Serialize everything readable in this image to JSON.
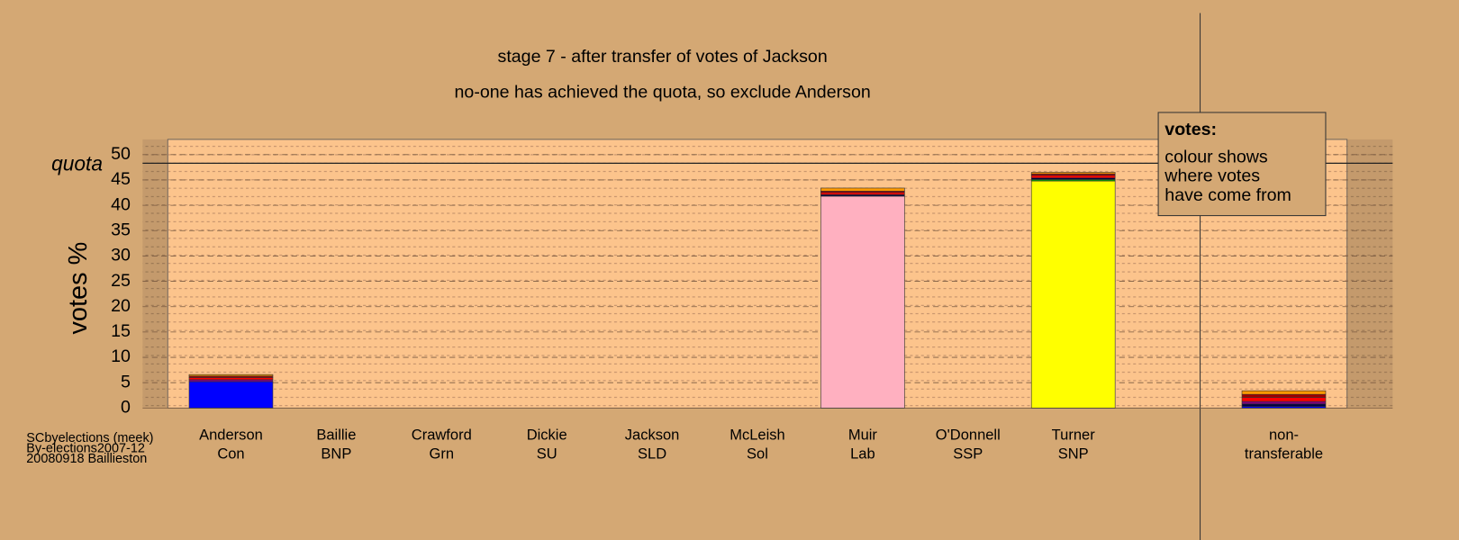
{
  "chart_data": {
    "type": "stacked-bar",
    "title": "stage 7 - after transfer of votes of Jackson",
    "subtitle": "no-one has achieved the quota, so exclude Anderson",
    "y_label": "votes %",
    "categories": [
      "Anderson",
      "Baillie",
      "Crawford",
      "Dickie",
      "Jackson",
      "McLeish",
      "Muir",
      "O'Donnell",
      "Turner",
      null,
      "non-"
    ],
    "category_sublabels": [
      "Con",
      "BNP",
      "Grn",
      "SU",
      "SLD",
      "Sol",
      "Lab",
      "SSP",
      "SNP",
      null,
      "transferable"
    ],
    "series": [
      {
        "color": "#0000ff",
        "values": [
          5.2,
          0,
          0,
          0,
          0,
          0,
          0,
          0,
          0,
          null,
          0.3
        ]
      },
      {
        "color": "#ffb0c0",
        "values": [
          0,
          0,
          0,
          0,
          0,
          0,
          41.8,
          0,
          0,
          null,
          0
        ]
      },
      {
        "color": "#ffff00",
        "values": [
          0,
          0,
          0,
          0,
          0,
          0,
          0,
          0,
          44.8,
          null,
          0
        ]
      },
      {
        "color": "#00a000",
        "values": [
          0,
          0,
          0,
          0,
          0,
          0,
          0,
          0,
          0.3,
          null,
          0
        ]
      },
      {
        "color": "#000040",
        "values": [
          0,
          0,
          0,
          0,
          0,
          0,
          0.3,
          0,
          0.3,
          null,
          0.5
        ]
      },
      {
        "color": "#800080",
        "values": [
          0.4,
          0,
          0,
          0,
          0,
          0,
          0,
          0,
          0,
          null,
          0.5
        ]
      },
      {
        "color": "#ff0000",
        "values": [
          0.4,
          0,
          0,
          0,
          0,
          0,
          0.4,
          0,
          0.5,
          null,
          0.8
        ]
      },
      {
        "color": "#a00000",
        "values": [
          0.3,
          0,
          0,
          0,
          0,
          0,
          0.3,
          0,
          0.3,
          null,
          0.6
        ]
      },
      {
        "color": "#ff9900",
        "values": [
          0.3,
          0,
          0,
          0,
          0,
          0,
          0.6,
          0,
          0.3,
          null,
          0.7
        ]
      }
    ],
    "ylim": [
      0,
      53
    ],
    "yticks": [
      0,
      5,
      10,
      15,
      20,
      25,
      30,
      35,
      40,
      45,
      50
    ],
    "grid": true,
    "quota": 48.3,
    "quota_label": "quota",
    "legend_box": {
      "title": "votes:",
      "lines": [
        "colour shows",
        "where votes",
        "have come from"
      ]
    },
    "footnote": [
      "SCbyelections (meek)",
      "By-elections2007-12",
      "20080918 Baillieston"
    ]
  }
}
